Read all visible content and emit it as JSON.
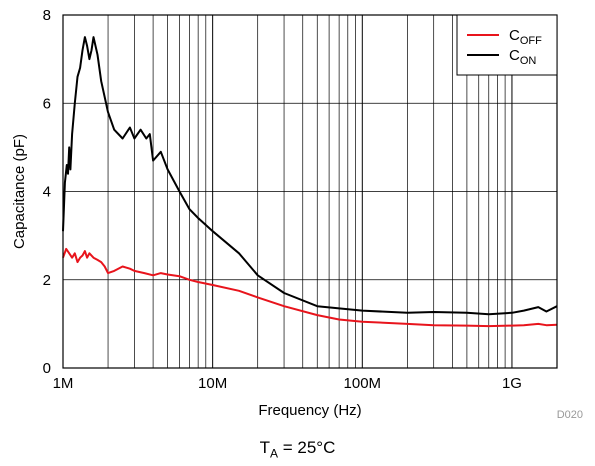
{
  "chart_data": {
    "type": "line",
    "xlabel": "Frequency (Hz)",
    "ylabel": "Capacitance (pF)",
    "x_scale": "log",
    "xlim": [
      1000000,
      2000000000
    ],
    "ylim": [
      0,
      8
    ],
    "x_ticks": [
      {
        "value": 1000000,
        "label": "1M"
      },
      {
        "value": 10000000,
        "label": "10M"
      },
      {
        "value": 100000000,
        "label": "100M"
      },
      {
        "value": 1000000000,
        "label": "1G"
      }
    ],
    "y_ticks": [
      {
        "value": 0,
        "label": "0"
      },
      {
        "value": 2,
        "label": "2"
      },
      {
        "value": 4,
        "label": "4"
      },
      {
        "value": 6,
        "label": "6"
      },
      {
        "value": 8,
        "label": "8"
      }
    ],
    "grid": true,
    "legend_position": "top-right",
    "series": [
      {
        "name_main": "C",
        "name_sub": "OFF",
        "color": "#e8141c",
        "x": [
          1000000,
          1050000,
          1100000,
          1150000,
          1200000,
          1250000,
          1300000,
          1350000,
          1400000,
          1450000,
          1500000,
          1600000,
          1700000,
          1800000,
          1900000,
          2000000,
          2200000,
          2500000,
          2800000,
          3000000,
          3500000,
          4000000,
          4500000,
          5000000,
          6000000,
          7000000,
          8000000,
          10000000,
          15000000,
          20000000,
          30000000,
          50000000,
          70000000,
          100000000,
          200000000,
          300000000,
          500000000,
          700000000,
          1000000000,
          1200000000,
          1500000000,
          1700000000,
          2000000000
        ],
        "y": [
          2.5,
          2.7,
          2.6,
          2.5,
          2.6,
          2.4,
          2.5,
          2.55,
          2.65,
          2.5,
          2.6,
          2.5,
          2.45,
          2.4,
          2.3,
          2.15,
          2.2,
          2.3,
          2.25,
          2.2,
          2.15,
          2.1,
          2.15,
          2.12,
          2.08,
          2.0,
          1.95,
          1.88,
          1.75,
          1.6,
          1.4,
          1.2,
          1.1,
          1.05,
          1.0,
          0.97,
          0.96,
          0.95,
          0.96,
          0.97,
          1.0,
          0.97,
          0.98
        ]
      },
      {
        "name_main": "C",
        "name_sub": "ON",
        "color": "#000000",
        "x": [
          1000000,
          1030000,
          1060000,
          1080000,
          1100000,
          1120000,
          1150000,
          1200000,
          1250000,
          1300000,
          1350000,
          1400000,
          1450000,
          1500000,
          1550000,
          1600000,
          1700000,
          1800000,
          2000000,
          2200000,
          2500000,
          2800000,
          3000000,
          3300000,
          3600000,
          3800000,
          4000000,
          4500000,
          5000000,
          6000000,
          7000000,
          8000000,
          10000000,
          15000000,
          20000000,
          30000000,
          50000000,
          70000000,
          100000000,
          200000000,
          300000000,
          500000000,
          700000000,
          1000000000,
          1200000000,
          1500000000,
          1700000000,
          2000000000
        ],
        "y": [
          3.1,
          4.2,
          4.6,
          4.4,
          5.0,
          4.5,
          5.3,
          6.0,
          6.6,
          6.8,
          7.2,
          7.5,
          7.3,
          7.0,
          7.2,
          7.5,
          7.1,
          6.5,
          5.8,
          5.4,
          5.2,
          5.45,
          5.2,
          5.4,
          5.2,
          5.3,
          4.7,
          4.9,
          4.5,
          4.0,
          3.6,
          3.4,
          3.1,
          2.6,
          2.1,
          1.7,
          1.4,
          1.35,
          1.3,
          1.25,
          1.27,
          1.25,
          1.22,
          1.25,
          1.3,
          1.38,
          1.28,
          1.4
        ]
      }
    ],
    "watermark": "D020",
    "caption_main": "T",
    "caption_sub": "A",
    "caption_rest": " = 25°C"
  }
}
